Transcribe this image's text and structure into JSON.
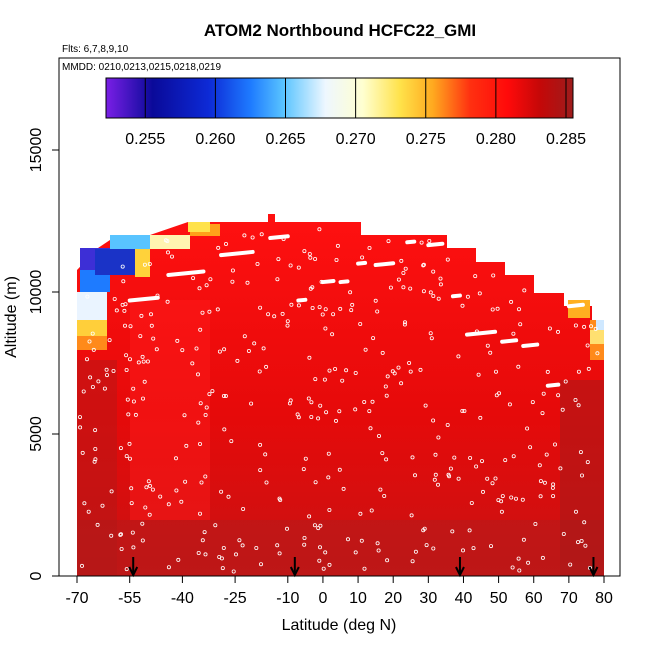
{
  "chart_data": {
    "type": "heatmap",
    "title": "ATOM2 Northbound HCFC22_GMI",
    "subtitle_flights": "Flts: 6,7,8,9,10",
    "subtitle_dates": "MMDD: 0210,0213,0215,0218,0219",
    "xlabel": "Latitude (deg N)",
    "ylabel": "Altitude (m)",
    "xlim": [
      -70,
      82
    ],
    "ylim": [
      0,
      17500
    ],
    "x_ticks": [
      -70,
      -55,
      -40,
      -25,
      -10,
      0,
      10,
      20,
      30,
      40,
      50,
      60,
      70,
      80
    ],
    "y_ticks": [
      0,
      5000,
      10000,
      15000
    ],
    "colorbar": {
      "ticks": [
        0.255,
        0.26,
        0.265,
        0.27,
        0.275,
        0.28,
        0.285
      ],
      "range": [
        0.2522,
        0.2855
      ],
      "placement": "top-inside"
    },
    "colors": {
      "purple": "#7a1fe6",
      "navy": "#0a0a99",
      "blue": "#1e5cff",
      "sky": "#3aaeff",
      "pale": "#eaf6ff",
      "cream": "#ffffd0",
      "yellow": "#ffe24a",
      "orange": "#ff8a1a",
      "red": "#ff1a10",
      "crimson": "#e00000",
      "darkred": "#b40f0f",
      "brown": "#9e1c1c",
      "marker": "#ffffff",
      "arrow": "#000000"
    },
    "surface_arrows_lat": [
      -54,
      -8,
      39,
      77
    ],
    "flight_segments_levels": [
      {
        "lat": [
          -55,
          -47
        ],
        "alt": 9700
      },
      {
        "lat": [
          -44,
          -34
        ],
        "alt": 10600
      },
      {
        "lat": [
          -29,
          -20
        ],
        "alt": 11300
      },
      {
        "lat": [
          -15,
          -10
        ],
        "alt": 11900
      },
      {
        "lat": [
          -7,
          -5
        ],
        "alt": 9700
      },
      {
        "lat": [
          0,
          3
        ],
        "alt": 10350
      },
      {
        "lat": [
          5,
          7
        ],
        "alt": 10350
      },
      {
        "lat": [
          10,
          12
        ],
        "alt": 11000
      },
      {
        "lat": [
          15,
          20
        ],
        "alt": 10950
      },
      {
        "lat": [
          24,
          26
        ],
        "alt": 11750
      },
      {
        "lat": [
          30,
          34
        ],
        "alt": 11650
      },
      {
        "lat": [
          37,
          39
        ],
        "alt": 9850
      },
      {
        "lat": [
          41,
          49
        ],
        "alt": 8500
      },
      {
        "lat": [
          51,
          55
        ],
        "alt": 8250
      },
      {
        "lat": [
          57,
          61
        ],
        "alt": 8100
      },
      {
        "lat": [
          64,
          67
        ],
        "alt": 6700
      },
      {
        "lat": [
          70,
          74
        ],
        "alt": 9500
      }
    ]
  }
}
